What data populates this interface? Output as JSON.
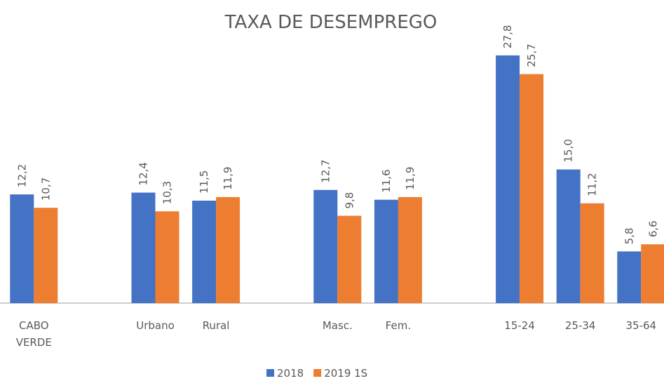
{
  "chart_data": {
    "type": "bar",
    "title": "TAXA DE DESEMPREGO",
    "categories": [
      "CABO VERDE",
      null,
      "Urbano",
      "Rural",
      null,
      "Masc.",
      "Fem.",
      null,
      "15-24",
      "25-34",
      "35-64"
    ],
    "series": [
      {
        "name": "2018",
        "color": "#4472c4",
        "values": [
          12.2,
          null,
          12.4,
          11.5,
          null,
          12.7,
          11.6,
          null,
          27.8,
          15.0,
          5.8
        ],
        "value_labels": [
          "12,2",
          null,
          "12,4",
          "11,5",
          null,
          "12,7",
          "11,6",
          null,
          "27,8",
          "15,0",
          "5,8"
        ]
      },
      {
        "name": "2019 1S",
        "color": "#ed7d31",
        "values": [
          10.7,
          null,
          10.3,
          11.9,
          null,
          9.8,
          11.9,
          null,
          25.7,
          11.2,
          6.6
        ],
        "value_labels": [
          "10,7",
          null,
          "10,3",
          "11,9",
          null,
          "9,8",
          "11,9",
          null,
          "25,7",
          "11,2",
          "6,6"
        ]
      }
    ],
    "ylim": [
      0,
      30
    ],
    "legend": "bottom"
  }
}
